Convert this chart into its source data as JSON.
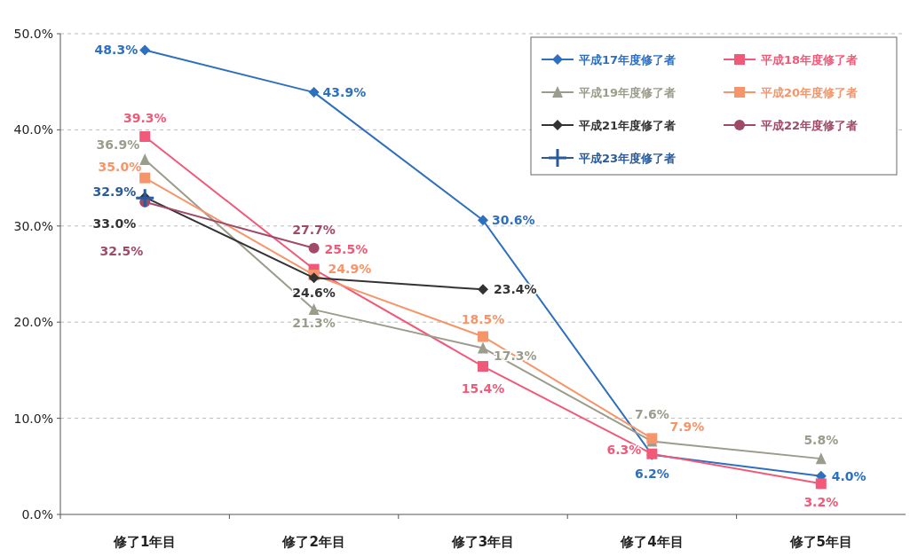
{
  "chart_data": {
    "type": "line",
    "categories": [
      "修了1年目",
      "修了2年目",
      "修了3年目",
      "修了4年目",
      "修了5年目"
    ],
    "ylim": [
      0,
      50
    ],
    "yticks": [
      {
        "value": 0,
        "label": "0.0%"
      },
      {
        "value": 10,
        "label": "10.0%"
      },
      {
        "value": 20,
        "label": "20.0%"
      },
      {
        "value": 30,
        "label": "30.0%"
      },
      {
        "value": 40,
        "label": "40.0%"
      },
      {
        "value": 50,
        "label": "50.0%"
      }
    ],
    "grid": "y",
    "legend": "top right",
    "series": [
      {
        "name": "平成17年度修了者",
        "color": "#2e6fc0",
        "marker": "diamond",
        "values": [
          48.3,
          43.9,
          30.6,
          6.2,
          4.0
        ],
        "value_labels": [
          "48.3%",
          "43.9%",
          "30.6%",
          "6.2%",
          "4.0%"
        ]
      },
      {
        "name": "平成18年度修了者",
        "color": "#f05a78",
        "marker": "square",
        "values": [
          39.3,
          25.5,
          15.4,
          6.3,
          3.2
        ],
        "value_labels": [
          "39.3%",
          "25.5%",
          "15.4%",
          "6.3%",
          "3.2%"
        ]
      },
      {
        "name": "平成19年度修了者",
        "color": "#9c9c8c",
        "marker": "triangle",
        "values": [
          36.9,
          21.3,
          17.3,
          7.6,
          5.8
        ],
        "value_labels": [
          "36.9%",
          "21.3%",
          "17.3%",
          "7.6%",
          "5.8%"
        ]
      },
      {
        "name": "平成20年度修了者",
        "color": "#f6956a",
        "marker": "square",
        "values": [
          35.0,
          24.9,
          18.5,
          7.9,
          null
        ],
        "value_labels": [
          "35.0%",
          "24.9%",
          "18.5%",
          "7.9%",
          null
        ]
      },
      {
        "name": "平成21年度修了者",
        "color": "#333333",
        "marker": "diamond",
        "values": [
          33.0,
          24.6,
          23.4,
          null,
          null
        ],
        "value_labels": [
          "33.0%",
          "24.6%",
          "23.4%",
          null,
          null
        ]
      },
      {
        "name": "平成22年度修了者",
        "color": "#a04a6a",
        "marker": "circle",
        "values": [
          32.5,
          27.7,
          null,
          null,
          null
        ],
        "value_labels": [
          "32.5%",
          "27.7%",
          null,
          null,
          null
        ]
      },
      {
        "name": "平成23年度修了者",
        "color": "#2a5a9a",
        "marker": "cross",
        "values": [
          32.9,
          null,
          null,
          null,
          null
        ],
        "value_labels": [
          "32.9%",
          null,
          null,
          null,
          null
        ]
      }
    ]
  }
}
